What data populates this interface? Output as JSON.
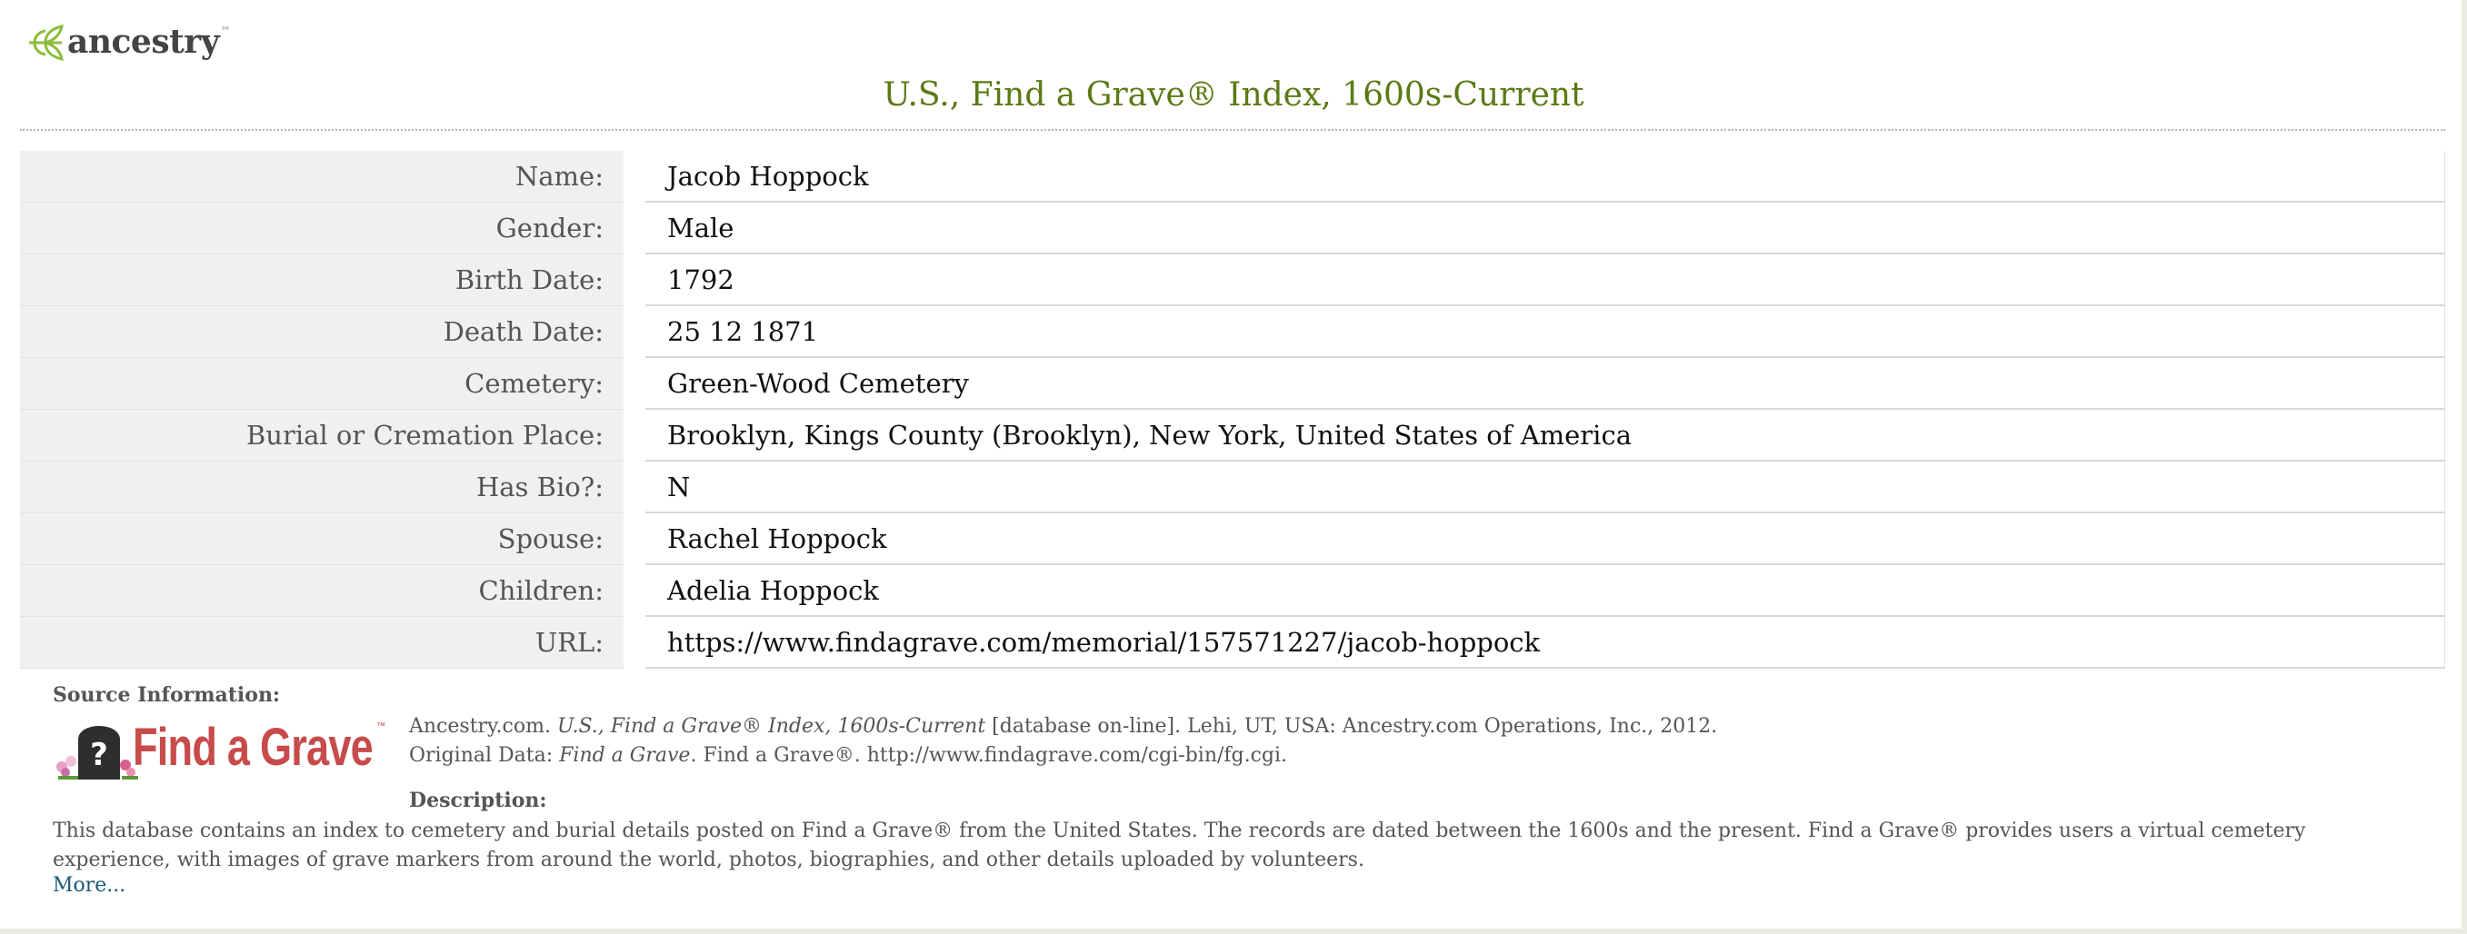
{
  "brand": {
    "name": "ancestry",
    "trademark": "™"
  },
  "title": "U.S., Find a Grave® Index, 1600s-Current",
  "record": [
    {
      "label": "Name:",
      "value": "Jacob Hoppock"
    },
    {
      "label": "Gender:",
      "value": "Male"
    },
    {
      "label": "Birth Date:",
      "value": "1792"
    },
    {
      "label": "Death Date:",
      "value": "25 12 1871"
    },
    {
      "label": "Cemetery:",
      "value": "Green-Wood Cemetery"
    },
    {
      "label": "Burial or Cremation Place:",
      "value": "Brooklyn, Kings County (Brooklyn), New York, United States of America"
    },
    {
      "label": "Has Bio?:",
      "value": "N"
    },
    {
      "label": "Spouse:",
      "value": "Rachel Hoppock"
    },
    {
      "label": "Children:",
      "value": "Adelia Hoppock"
    },
    {
      "label": "URL:",
      "value": "https://www.findagrave.com/memorial/157571227/jacob-hoppock"
    }
  ],
  "source": {
    "heading": "Source Information:",
    "logo_text": "Find a Grave",
    "logo_trademark": "™",
    "citation_prefix": "Ancestry.com. ",
    "citation_title": "U.S., Find a Grave® Index, 1600s-Current",
    "citation_suffix": " [database on-line]. Lehi, UT, USA: Ancestry.com Operations, Inc., 2012.",
    "original_prefix": "Original Data: ",
    "original_title": "Find a Grave",
    "original_suffix": ". Find a Grave®. http://www.findagrave.com/cgi-bin/fg.cgi."
  },
  "description": {
    "heading": "Description:",
    "text": "This database contains an index to cemetery and burial details posted on Find a Grave® from the United States. The records are dated between the 1600s and the present. Find a Grave® provides users a virtual cemetery experience, with images of grave markers from around the world, photos, biographies, and other details uploaded by volunteers.",
    "more_label": "More..."
  },
  "colors": {
    "title_green": "#5a7a14",
    "leaf_green": "#8cbc3c",
    "label_bg": "#f0f0f0",
    "link_blue": "#1a5a7a",
    "grave_red": "#c84b4b"
  }
}
